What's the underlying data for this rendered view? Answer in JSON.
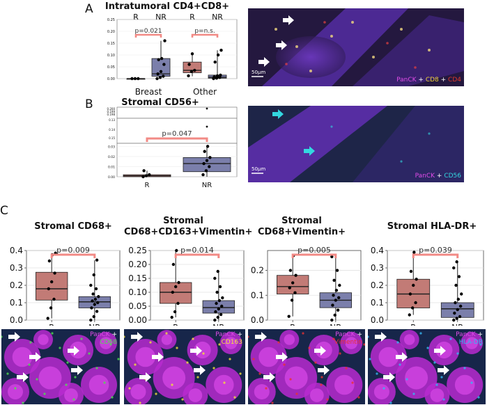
{
  "panels": {
    "a": "A",
    "b": "B",
    "c": "C"
  },
  "colors": {
    "r_fill": "#c27b76",
    "nr_fill": "#7b7fab",
    "bracket": "#f28a85",
    "panck": "#d23be0",
    "cd8": "#f2d23a",
    "cd4": "#e23a2a",
    "cd56": "#33d7e0",
    "cd68": "#4fe04f",
    "cd163": "#f2e23a",
    "vimentin": "#e83232",
    "hladr": "#36b8f2"
  },
  "images": {
    "a": {
      "scale": "50µm",
      "legend": [
        {
          "text": "PanCK",
          "color": "#e04ce8"
        },
        {
          "text": " + ",
          "color": "#ffffff"
        },
        {
          "text": "CD8",
          "color": "#f2d23a"
        },
        {
          "text": " + ",
          "color": "#ffffff"
        },
        {
          "text": "CD4",
          "color": "#e23a2a"
        }
      ]
    },
    "b": {
      "scale": "50µm",
      "legend": [
        {
          "text": "PanCK",
          "color": "#e04ce8"
        },
        {
          "text": " + ",
          "color": "#ffffff"
        },
        {
          "text": "CD56",
          "color": "#33d7e0"
        }
      ]
    },
    "c": [
      {
        "line1": [
          {
            "text": "PanCK",
            "color": "#e04ce8"
          },
          {
            "text": " +",
            "color": "#ffffff"
          }
        ],
        "line2": [
          {
            "text": "CD68",
            "color": "#4fe04f"
          }
        ]
      },
      {
        "line1": [
          {
            "text": "PanCK",
            "color": "#e04ce8"
          },
          {
            "text": " +",
            "color": "#ffffff"
          }
        ],
        "line2": [
          {
            "text": "CD163",
            "color": "#f2e23a"
          }
        ]
      },
      {
        "line1": [
          {
            "text": "PanCK",
            "color": "#e04ce8"
          },
          {
            "text": " +",
            "color": "#ffffff"
          }
        ],
        "line2": [
          {
            "text": "Vimentin",
            "color": "#e83232"
          }
        ]
      },
      {
        "line1": [
          {
            "text": "PanCK",
            "color": "#e04ce8"
          },
          {
            "text": " +",
            "color": "#ffffff"
          }
        ],
        "line2": [
          {
            "text": "HLA-DR",
            "color": "#36b8f2"
          }
        ]
      }
    ]
  },
  "chart_data": [
    {
      "type": "box",
      "id": "A",
      "title": "Intratumoral CD4+CD8+",
      "groups": [
        "Breast",
        "Other"
      ],
      "categories": [
        "R",
        "NR"
      ],
      "ylim": [
        0,
        0.25
      ],
      "yticks": [
        "0.00",
        "0.05",
        "0.10",
        "0.15",
        "0.20",
        "0.25"
      ],
      "annotations": [
        "p=0.021",
        "p=n.s."
      ],
      "boxes": [
        {
          "group": "Breast",
          "cat": "R",
          "min": 0.0,
          "q1": 0.0,
          "median": 0.0,
          "q3": 0.0,
          "max": 0.0,
          "points": [
            0.0,
            0.0,
            0.0
          ]
        },
        {
          "group": "Breast",
          "cat": "NR",
          "min": 0.0,
          "q1": 0.01,
          "median": 0.02,
          "q3": 0.085,
          "max": 0.16,
          "points": [
            0.0,
            0.005,
            0.01,
            0.02,
            0.03,
            0.06,
            0.08,
            0.085,
            0.16
          ]
        },
        {
          "group": "Other",
          "cat": "R",
          "min": 0.01,
          "q1": 0.025,
          "median": 0.035,
          "q3": 0.07,
          "max": 0.105,
          "points": [
            0.012,
            0.03,
            0.035,
            0.06,
            0.105
          ]
        },
        {
          "group": "Other",
          "cat": "NR",
          "min": 0.0,
          "q1": 0.002,
          "median": 0.006,
          "q3": 0.015,
          "max": 0.12,
          "points": [
            0.0,
            0.002,
            0.005,
            0.008,
            0.012,
            0.015,
            0.07,
            0.1,
            0.12
          ]
        }
      ]
    },
    {
      "type": "box",
      "id": "B",
      "title": "Stromal CD56+",
      "categories": [
        "R",
        "NR"
      ],
      "yticks": [
        "0.00",
        "0.01",
        "0.02",
        "0.03"
      ],
      "upper_ticks": [
        "0.15",
        "0.14",
        "0.13",
        "0.200",
        "0.199",
        "0.198"
      ],
      "annotation": "p=0.047",
      "boxes": [
        {
          "cat": "R",
          "min": 0.0,
          "q1": 0.0,
          "median": 0.001,
          "q3": 0.002,
          "max": 0.006,
          "points": [
            0.0,
            0.001,
            0.002,
            0.006
          ]
        },
        {
          "cat": "NR",
          "min": 0.0,
          "q1": 0.005,
          "median": 0.013,
          "q3": 0.019,
          "max": 0.03,
          "points": [
            0.002,
            0.006,
            0.01,
            0.013,
            0.016,
            0.019,
            0.025,
            0.03
          ],
          "outliers": [
            0.15,
            0.2
          ]
        }
      ]
    },
    {
      "type": "box",
      "id": "C1",
      "title": "Stromal CD68+",
      "categories": [
        "R",
        "NR"
      ],
      "ylim": [
        0,
        0.4
      ],
      "yticks": [
        "0.0",
        "0.1",
        "0.2",
        "0.3",
        "0.4"
      ],
      "annotation": "p=0.009",
      "boxes": [
        {
          "cat": "R",
          "min": 0.01,
          "q1": 0.115,
          "median": 0.18,
          "q3": 0.275,
          "max": 0.385,
          "points": [
            0.01,
            0.07,
            0.12,
            0.18,
            0.22,
            0.27,
            0.34,
            0.375,
            0.385
          ]
        },
        {
          "cat": "NR",
          "min": 0.0,
          "q1": 0.07,
          "median": 0.105,
          "q3": 0.135,
          "max": 0.345,
          "points": [
            0.0,
            0.02,
            0.05,
            0.07,
            0.09,
            0.1,
            0.11,
            0.12,
            0.135,
            0.15,
            0.18,
            0.2,
            0.26,
            0.345
          ]
        }
      ]
    },
    {
      "type": "box",
      "id": "C2",
      "title": "Stromal CD68+CD163+Vimentin+",
      "categories": [
        "R",
        "NR"
      ],
      "ylim": [
        0,
        0.25
      ],
      "yticks": [
        "0.00",
        "0.05",
        "0.10",
        "0.15",
        "0.20",
        "0.25"
      ],
      "annotation": "p=0.014",
      "boxes": [
        {
          "cat": "R",
          "min": 0.01,
          "q1": 0.06,
          "median": 0.1,
          "q3": 0.135,
          "max": 0.25,
          "points": [
            0.01,
            0.03,
            0.06,
            0.1,
            0.12,
            0.135,
            0.2,
            0.25
          ]
        },
        {
          "cat": "NR",
          "min": 0.0,
          "q1": 0.025,
          "median": 0.045,
          "q3": 0.07,
          "max": 0.175,
          "points": [
            0.0,
            0.01,
            0.02,
            0.03,
            0.04,
            0.05,
            0.06,
            0.07,
            0.08,
            0.1,
            0.12,
            0.15,
            0.175
          ]
        }
      ]
    },
    {
      "type": "box",
      "id": "C3",
      "title": "Stromal CD68+Vimentin+",
      "categories": [
        "R",
        "NR"
      ],
      "ylim": [
        0,
        0.28
      ],
      "yticks": [
        "0.0",
        "0.1",
        "0.2"
      ],
      "annotation": "p=0.005",
      "boxes": [
        {
          "cat": "R",
          "min": 0.015,
          "q1": 0.105,
          "median": 0.135,
          "q3": 0.18,
          "max": 0.26,
          "points": [
            0.015,
            0.08,
            0.11,
            0.13,
            0.15,
            0.18,
            0.2,
            0.26
          ]
        },
        {
          "cat": "NR",
          "min": 0.0,
          "q1": 0.05,
          "median": 0.08,
          "q3": 0.11,
          "max": 0.255,
          "points": [
            0.0,
            0.02,
            0.04,
            0.06,
            0.08,
            0.09,
            0.1,
            0.12,
            0.14,
            0.16,
            0.2,
            0.255
          ]
        }
      ]
    },
    {
      "type": "box",
      "id": "C4",
      "title": "Stromal HLA-DR+",
      "categories": [
        "R",
        "NR"
      ],
      "ylim": [
        0,
        0.4
      ],
      "yticks": [
        "0.0",
        "0.1",
        "0.2",
        "0.3",
        "0.4"
      ],
      "annotation": "p=0.039",
      "boxes": [
        {
          "cat": "R",
          "min": 0.03,
          "q1": 0.07,
          "median": 0.15,
          "q3": 0.235,
          "max": 0.39,
          "points": [
            0.03,
            0.07,
            0.1,
            0.15,
            0.2,
            0.235,
            0.28,
            0.39
          ]
        },
        {
          "cat": "NR",
          "min": 0.0,
          "q1": 0.015,
          "median": 0.065,
          "q3": 0.1,
          "max": 0.335,
          "points": [
            0.0,
            0.01,
            0.02,
            0.04,
            0.06,
            0.08,
            0.1,
            0.12,
            0.15,
            0.2,
            0.25,
            0.3,
            0.335
          ]
        }
      ]
    }
  ]
}
